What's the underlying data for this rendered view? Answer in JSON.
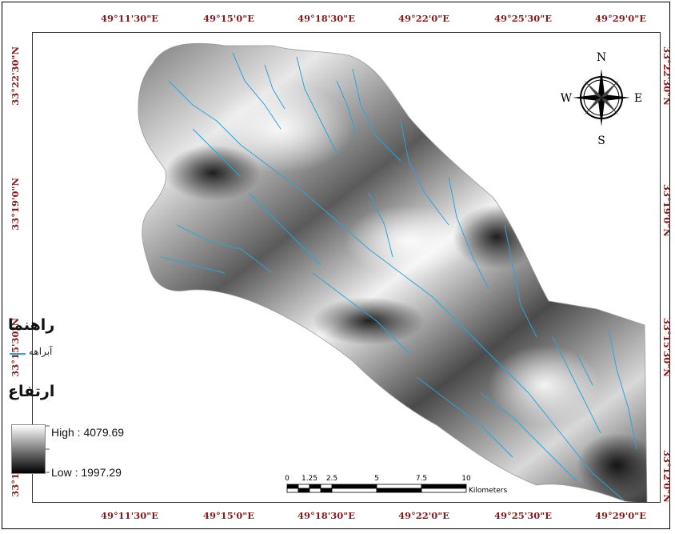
{
  "map": {
    "top_coords": [
      "49°11'30\"E",
      "49°15'0\"E",
      "49°18'30\"E",
      "49°22'0\"E",
      "49°25'30\"E",
      "49°29'0\"E"
    ],
    "bottom_coords": [
      "49°11'30\"E",
      "49°15'0\"E",
      "49°18'30\"E",
      "49°22'0\"E",
      "49°25'30\"E",
      "49°29'0\"E"
    ],
    "left_coords": [
      "33°22'30\"N",
      "33°19'0\"N",
      "33°15'30\"N",
      "33°12'0\"N"
    ],
    "right_coords": [
      "33°22'30\"N",
      "33°19'0\"N",
      "33°15'30\"N",
      "33°12'0\"N"
    ],
    "north_arrow": {
      "n": "N",
      "s": "S",
      "e": "E",
      "w": "W"
    },
    "scalebar": {
      "ticks": [
        "0",
        "1.25",
        "2.5",
        "5",
        "7.5",
        "10"
      ],
      "unit": "Kilometers"
    },
    "colors": {
      "stream": "#2aa6d6",
      "coord_text": "#8b1a1a"
    }
  },
  "legend": {
    "title": "راهنما",
    "stream_label": "آبراهه",
    "elevation_title": "ارتفاع",
    "high": "High : 4079.69",
    "low": "Low : 1997.29"
  }
}
